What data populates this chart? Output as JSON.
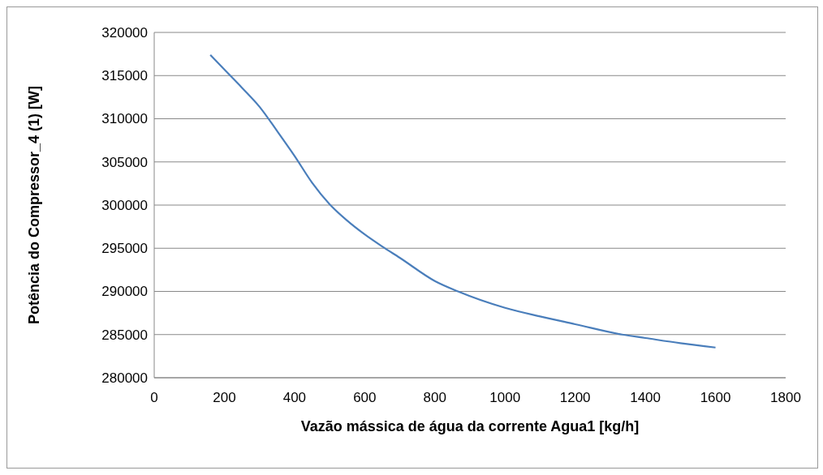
{
  "chart_data": {
    "type": "line",
    "xlabel": "Vazão mássica de água da corrente Agua1 [kg/h]",
    "ylabel": "Potência do Compressor_4 (1) [W]",
    "x": [
      160,
      200,
      250,
      300,
      350,
      400,
      450,
      500,
      550,
      600,
      650,
      700,
      800,
      866,
      1000,
      1100,
      1200,
      1334,
      1400,
      1500,
      1600
    ],
    "series": [
      {
        "color": "#4a7ebb",
        "values": [
          317400,
          315700,
          313600,
          311400,
          308600,
          305700,
          302600,
          300100,
          298200,
          296600,
          295200,
          293900,
          291200,
          290000,
          288100,
          287100,
          286200,
          285000,
          284600,
          284000,
          283500
        ]
      }
    ],
    "xlim": [
      0,
      1800
    ],
    "xticks": [
      0,
      200,
      400,
      600,
      800,
      1000,
      1200,
      1400,
      1600,
      1800
    ],
    "ylim": [
      280000,
      320000
    ],
    "yticks": [
      280000,
      285000,
      290000,
      295000,
      300000,
      305000,
      310000,
      315000,
      320000
    ],
    "grid": "y",
    "marker": "none",
    "line_style": "solid"
  }
}
